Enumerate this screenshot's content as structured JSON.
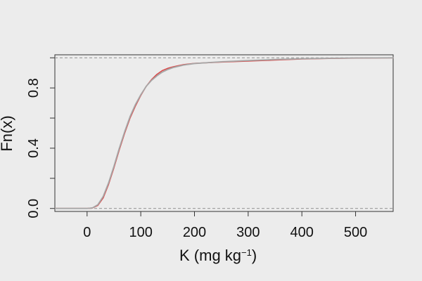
{
  "chart_data": {
    "type": "line",
    "title": "",
    "xlabel": {
      "main": "K (mg  kg",
      "superscript": "−1",
      "suffix": ")"
    },
    "ylabel": "Fn(x)",
    "xlim": [
      -60,
      570
    ],
    "ylim": [
      -0.02,
      1.02
    ],
    "x_ticks": [
      0,
      100,
      200,
      300,
      400,
      500
    ],
    "x_tick_labels": [
      "0",
      "100",
      "200",
      "300",
      "400",
      "500"
    ],
    "y_ticks": [
      0.0,
      0.4,
      0.8
    ],
    "y_minor_ticks": [
      0.2,
      0.6,
      1.0
    ],
    "y_tick_labels": [
      "0.0",
      "0.4",
      "0.8"
    ],
    "reference_lines": [
      0,
      1
    ],
    "colors": {
      "background": "#ececec",
      "axis": "#333333",
      "reference": "#999999",
      "series_red": "#d94a4a",
      "series_gray": "#a7a7a7"
    },
    "series": [
      {
        "points": [
          [
            -60,
            0.0
          ],
          [
            0,
            0.0
          ],
          [
            10,
            0.003
          ],
          [
            20,
            0.02
          ],
          [
            30,
            0.07
          ],
          [
            40,
            0.16
          ],
          [
            50,
            0.27
          ],
          [
            60,
            0.39
          ],
          [
            70,
            0.5
          ],
          [
            80,
            0.6
          ],
          [
            90,
            0.68
          ],
          [
            100,
            0.75
          ],
          [
            110,
            0.81
          ],
          [
            120,
            0.855
          ],
          [
            130,
            0.89
          ],
          [
            140,
            0.915
          ],
          [
            150,
            0.93
          ],
          [
            160,
            0.94
          ],
          [
            180,
            0.955
          ],
          [
            200,
            0.963
          ],
          [
            250,
            0.972
          ],
          [
            300,
            0.978
          ],
          [
            350,
            0.985
          ],
          [
            400,
            0.992
          ],
          [
            450,
            0.996
          ],
          [
            500,
            0.998
          ],
          [
            570,
            1.0
          ]
        ]
      },
      {
        "points": [
          [
            -60,
            0.0
          ],
          [
            0,
            0.0
          ],
          [
            10,
            0.004
          ],
          [
            20,
            0.025
          ],
          [
            30,
            0.08
          ],
          [
            40,
            0.17
          ],
          [
            50,
            0.28
          ],
          [
            60,
            0.4
          ],
          [
            70,
            0.51
          ],
          [
            80,
            0.61
          ],
          [
            90,
            0.69
          ],
          [
            100,
            0.755
          ],
          [
            110,
            0.81
          ],
          [
            120,
            0.85
          ],
          [
            130,
            0.88
          ],
          [
            140,
            0.905
          ],
          [
            150,
            0.922
          ],
          [
            160,
            0.935
          ],
          [
            180,
            0.952
          ],
          [
            200,
            0.962
          ],
          [
            250,
            0.974
          ],
          [
            300,
            0.982
          ],
          [
            350,
            0.989
          ],
          [
            400,
            0.994
          ],
          [
            450,
            0.997
          ],
          [
            500,
            0.999
          ],
          [
            570,
            1.0
          ]
        ]
      }
    ]
  }
}
